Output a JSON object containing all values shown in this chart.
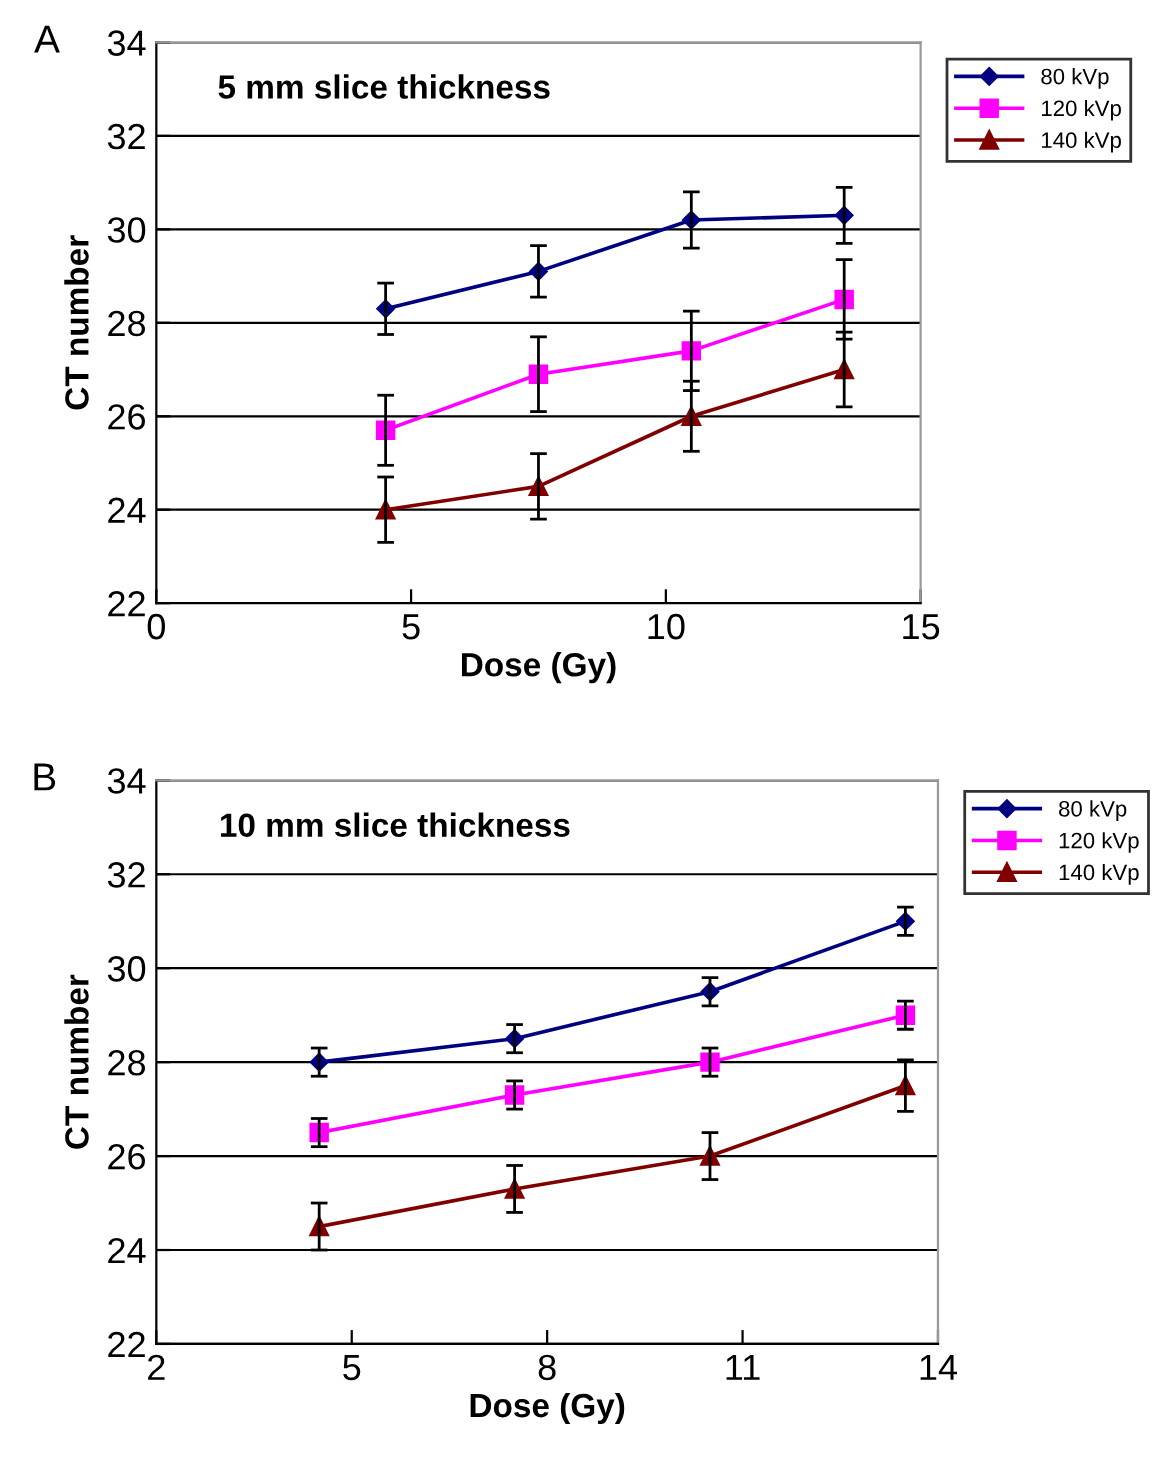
{
  "chart_data": [
    {
      "type": "line",
      "title": "5 mm slice thickness",
      "xlabel": "Dose (Gy)",
      "ylabel": "CT number",
      "annotations": [
        "A"
      ],
      "xlim": [
        0,
        15
      ],
      "xticks": [
        0,
        5,
        10,
        15
      ],
      "ylim": [
        22,
        34
      ],
      "yticks": [
        22,
        24,
        26,
        28,
        30,
        32,
        34
      ],
      "grid": "y",
      "legend": "top right",
      "line_style": "solid",
      "x": [
        4.5,
        7.5,
        10.5,
        13.5
      ],
      "series": [
        {
          "name": "80 kVp",
          "color": "#000080",
          "marker": "diamond",
          "values": [
            28.3,
            29.1,
            30.2,
            30.3
          ],
          "errors": [
            0.55,
            0.55,
            0.6,
            0.6
          ]
        },
        {
          "name": "120 kVp",
          "color": "#ff00ff",
          "marker": "square",
          "values": [
            25.7,
            26.9,
            27.4,
            28.5
          ],
          "errors": [
            0.75,
            0.8,
            0.85,
            0.85
          ]
        },
        {
          "name": "140 kVp",
          "color": "#800000",
          "marker": "triangle",
          "values": [
            24.0,
            24.5,
            26.0,
            27.0
          ],
          "errors": [
            0.7,
            0.7,
            0.75,
            0.8
          ]
        }
      ]
    },
    {
      "type": "line",
      "title": "10 mm slice thickness",
      "xlabel": "Dose (Gy)",
      "ylabel": "CT number",
      "annotations": [
        "B"
      ],
      "xlim": [
        2,
        14
      ],
      "xticks": [
        2,
        5,
        8,
        11,
        14
      ],
      "ylim": [
        22,
        34
      ],
      "yticks": [
        22,
        24,
        26,
        28,
        30,
        32,
        34
      ],
      "grid": "y",
      "legend": "top right",
      "line_style": "solid",
      "x": [
        4.5,
        7.5,
        10.5,
        13.5
      ],
      "series": [
        {
          "name": "80 kVp",
          "color": "#000080",
          "marker": "diamond",
          "values": [
            28.0,
            28.5,
            29.5,
            31.0
          ],
          "errors": [
            0.3,
            0.3,
            0.3,
            0.3
          ]
        },
        {
          "name": "120 kVp",
          "color": "#ff00ff",
          "marker": "square",
          "values": [
            26.5,
            27.3,
            28.0,
            29.0
          ],
          "errors": [
            0.3,
            0.3,
            0.3,
            0.3
          ]
        },
        {
          "name": "140 kVp",
          "color": "#800000",
          "marker": "triangle",
          "values": [
            24.5,
            25.3,
            26.0,
            27.5
          ],
          "errors": [
            0.5,
            0.5,
            0.5,
            0.55
          ]
        }
      ]
    }
  ]
}
